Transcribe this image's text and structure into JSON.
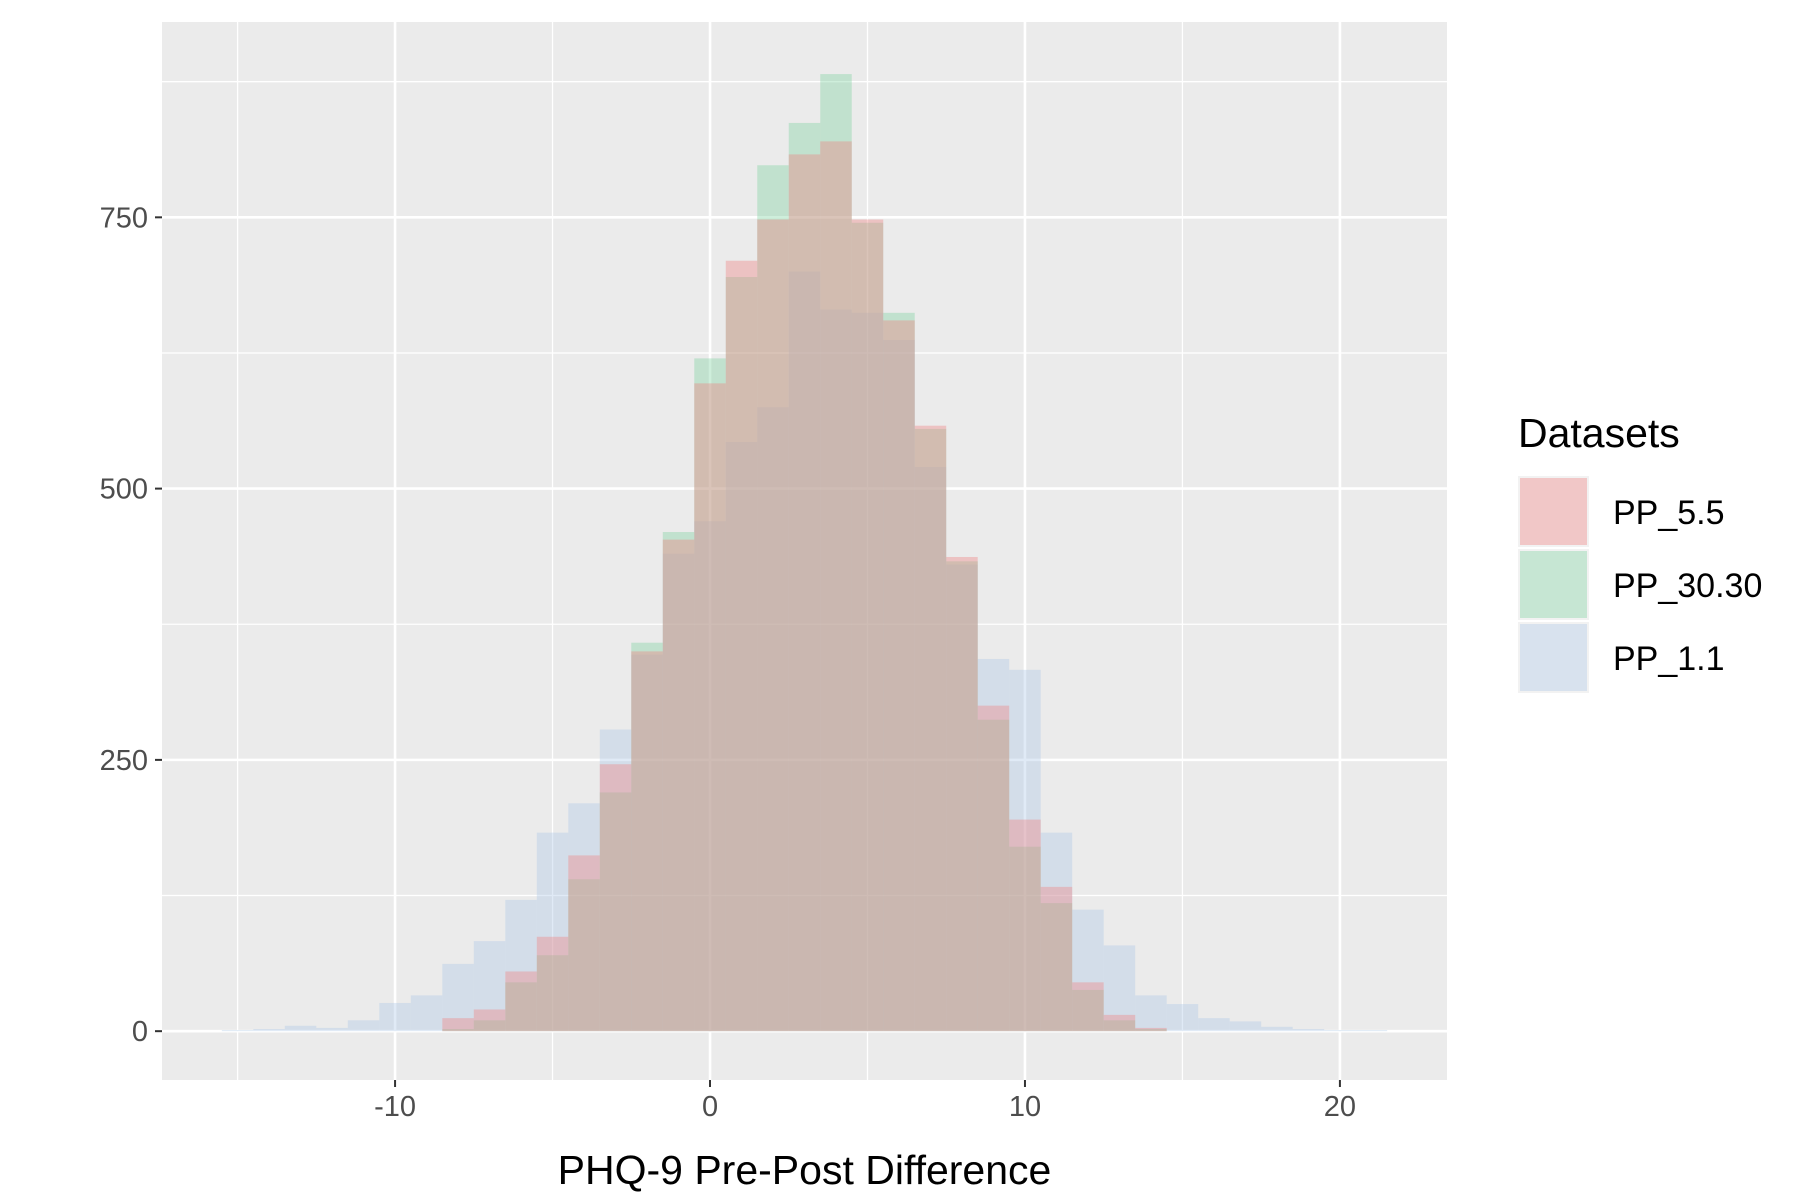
{
  "chart_data": {
    "type": "bar",
    "subtype": "overlaid-histogram",
    "xlabel": "PHQ-9 Pre-Post Difference",
    "ylabel": "",
    "xlim": [
      -17.4,
      23.4
    ],
    "ylim": [
      -45,
      930
    ],
    "x_ticks": [
      -10,
      0,
      10,
      20
    ],
    "y_ticks": [
      0,
      250,
      500,
      750
    ],
    "x_tick_labels": [
      "-10",
      "0",
      "10",
      "20"
    ],
    "y_tick_labels": [
      "0",
      "250",
      "500",
      "750"
    ],
    "grid": true,
    "bin_width": 1,
    "legend": {
      "title": "Datasets",
      "position": "right"
    },
    "bin_centers": [
      -15,
      -14,
      -13,
      -12,
      -11,
      -10,
      -9,
      -8,
      -7,
      -6,
      -5,
      -4,
      -3,
      -2,
      -1,
      0,
      1,
      2,
      3,
      4,
      5,
      6,
      7,
      8,
      9,
      10,
      11,
      12,
      13,
      14,
      15,
      16,
      17,
      18,
      19,
      20,
      21
    ],
    "series": [
      {
        "name": "PP_1.1",
        "color": "#aec7e8",
        "values": [
          1,
          2,
          5,
          3,
          10,
          26,
          33,
          62,
          83,
          121,
          183,
          210,
          278,
          347,
          440,
          470,
          543,
          575,
          700,
          665,
          662,
          637,
          520,
          430,
          343,
          333,
          183,
          112,
          79,
          33,
          25,
          12,
          9,
          4,
          2,
          1,
          1
        ]
      },
      {
        "name": "PP_30.30",
        "color": "#7fd3a0",
        "values": [
          0,
          0,
          0,
          0,
          0,
          0,
          0,
          2,
          10,
          45,
          70,
          140,
          220,
          358,
          460,
          620,
          695,
          798,
          837,
          882,
          745,
          662,
          555,
          433,
          287,
          170,
          118,
          38,
          10,
          2,
          0,
          0,
          0,
          0,
          0,
          0,
          0
        ]
      },
      {
        "name": "PP_5.5",
        "color": "#f08080",
        "values": [
          0,
          0,
          0,
          0,
          0,
          0,
          0,
          12,
          20,
          55,
          87,
          162,
          246,
          350,
          453,
          597,
          710,
          748,
          808,
          820,
          748,
          655,
          558,
          437,
          300,
          195,
          133,
          45,
          15,
          3,
          0,
          0,
          0,
          0,
          0,
          0,
          0
        ]
      }
    ],
    "legend_order": [
      "PP_5.5",
      "PP_30.30",
      "PP_1.1"
    ],
    "colors": {
      "panel_background": "#ebebeb",
      "grid": "#ffffff",
      "tick_text": "#4d4d4d",
      "tick_mark": "#333333"
    }
  }
}
